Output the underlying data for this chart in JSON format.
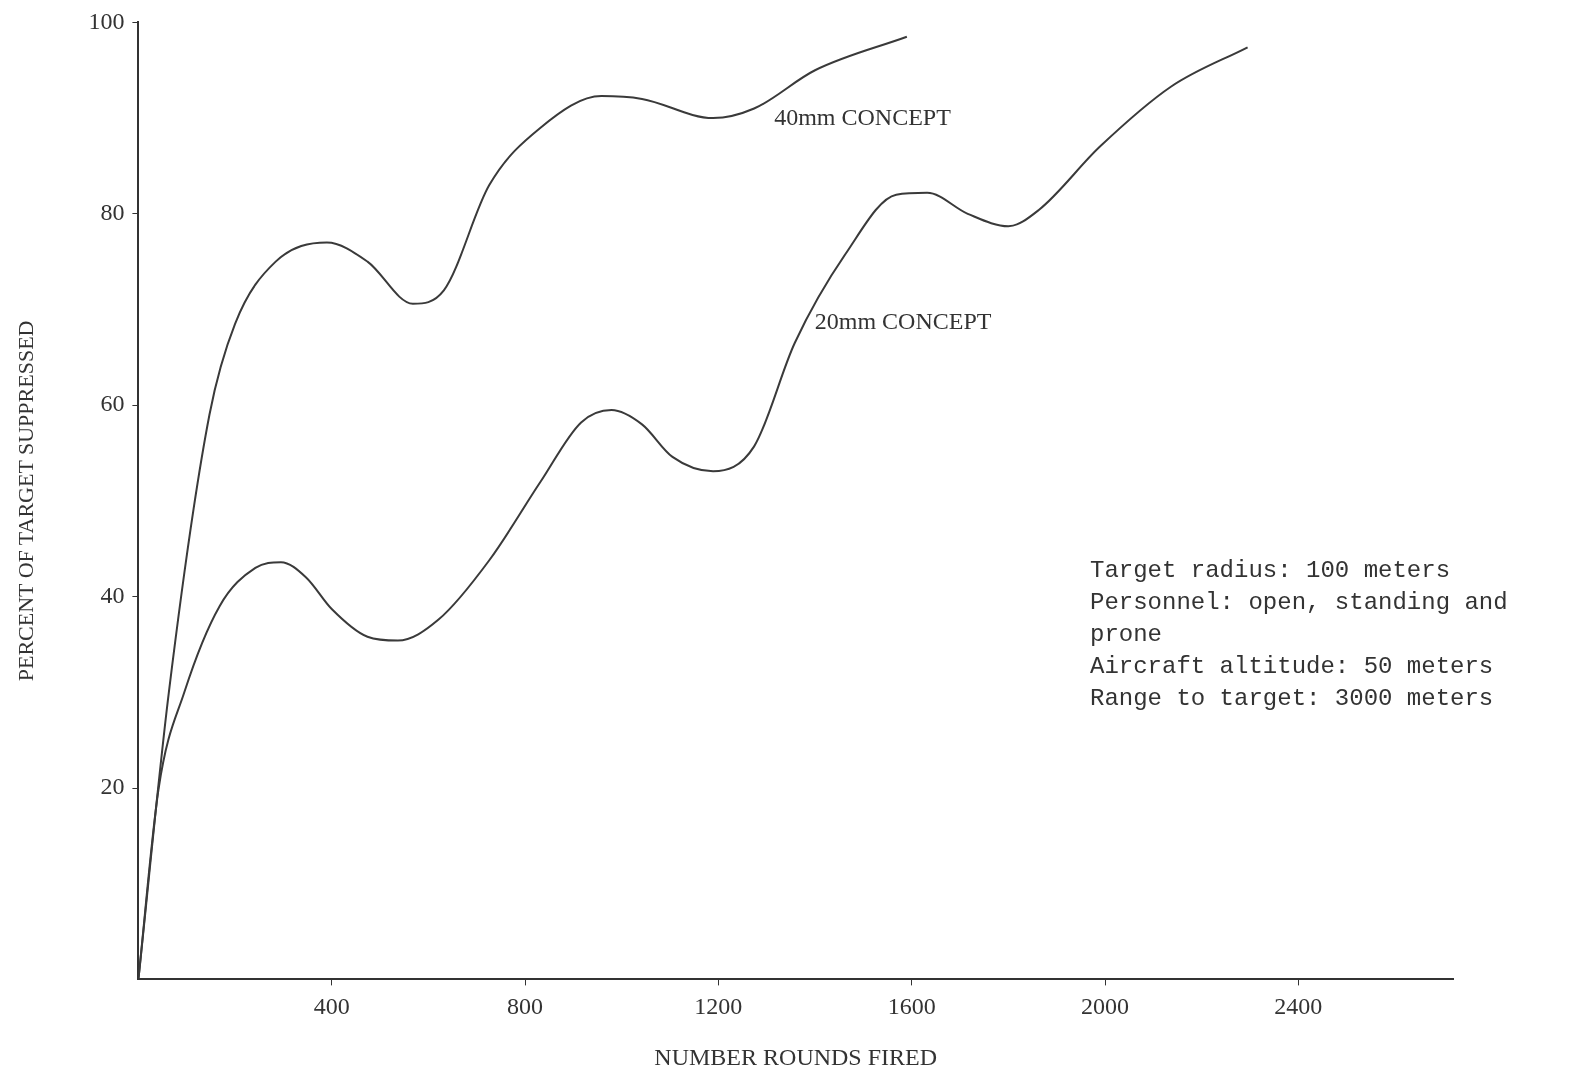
{
  "chart_data": {
    "type": "line",
    "xlabel": "NUMBER ROUNDS FIRED",
    "ylabel": "PERCENT OF TARGET SUPPRESSED",
    "xlim": [
      0,
      2720
    ],
    "ylim": [
      0,
      100
    ],
    "xticks": [
      400,
      800,
      1200,
      1600,
      2000,
      2400
    ],
    "yticks": [
      20,
      40,
      60,
      80,
      100
    ],
    "grid": false,
    "legend": false,
    "marker": "none",
    "line_style": "solid",
    "series": [
      {
        "name": "40mm CONCEPT",
        "color": "#3a3a3a",
        "x": [
          0,
          63,
          147,
          200,
          284,
          390,
          474,
          568,
          632,
          726,
          832,
          958,
          1042,
          1189,
          1274,
          1400,
          1590
        ],
        "values": [
          0,
          30,
          59,
          68.5,
          75,
          77,
          75,
          70.6,
          72,
          83,
          89,
          92.3,
          92,
          90,
          91,
          95,
          98.5
        ]
      },
      {
        "name": "20mm CONCEPT",
        "color": "#3a3a3a",
        "x": [
          0,
          42,
          95,
          168,
          242,
          295,
          347,
          400,
          474,
          537,
          621,
          726,
          832,
          916,
          979,
          1042,
          1105,
          1189,
          1274,
          1358,
          1463,
          1568,
          1632,
          1716,
          1800,
          1863,
          1989,
          2137,
          2295
        ],
        "values": [
          0,
          20,
          30,
          39,
          43,
          43.6,
          42,
          38.7,
          35.8,
          35.4,
          37.6,
          43.8,
          52,
          58.2,
          59.5,
          58,
          54.6,
          53.1,
          55.7,
          66.5,
          75.8,
          82,
          82.2,
          80,
          78.7,
          80.4,
          87,
          93.3,
          97.4
        ]
      }
    ],
    "annotations": [
      "Target radius:  100 meters",
      "Personnel:  open, standing and prone",
      "Aircraft altitude:  50 meters",
      "Range to target:  3000 meters"
    ]
  }
}
